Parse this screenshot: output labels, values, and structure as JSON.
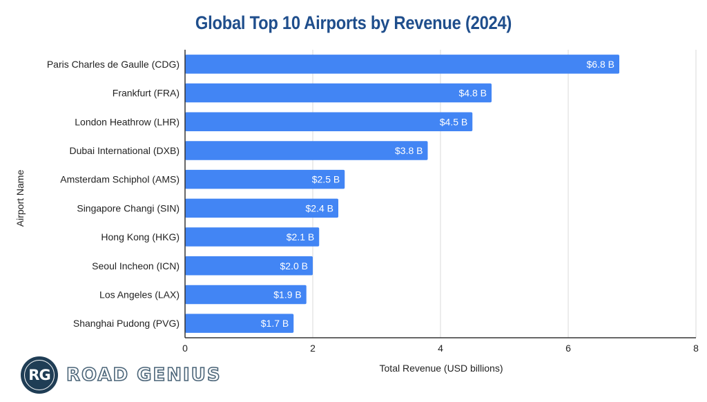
{
  "chart_data": {
    "type": "bar",
    "orientation": "horizontal",
    "title": "Global Top 10 Airports by Revenue (2024)",
    "xlabel": "Total Revenue (USD billions)",
    "ylabel": "Airport Name",
    "categories": [
      "Paris Charles de Gaulle (CDG)",
      "Frankfurt (FRA)",
      "London Heathrow (LHR)",
      "Dubai International (DXB)",
      "Amsterdam Schiphol (AMS)",
      "Singapore Changi (SIN)",
      "Hong Kong (HKG)",
      "Seoul Incheon (ICN)",
      "Los Angeles (LAX)",
      "Shanghai Pudong (PVG)"
    ],
    "values": [
      6.8,
      4.8,
      4.5,
      3.8,
      2.5,
      2.4,
      2.1,
      2.0,
      1.9,
      1.7
    ],
    "data_labels": [
      "$6.8 B",
      "$4.8 B",
      "$4.5 B",
      "$3.8 B",
      "$2.5 B",
      "$2.4 B",
      "$2.1 B",
      "$2.0 B",
      "$1.9 B",
      "$1.7 B"
    ],
    "xlim": [
      0,
      8
    ],
    "xticks": [
      0,
      2,
      4,
      6,
      8
    ],
    "xtick_labels": [
      "0",
      "2",
      "4",
      "6",
      "8"
    ],
    "grid": true,
    "legend": "none",
    "bar_color": "#4285f4",
    "title_color": "#1f4e8c"
  },
  "branding": {
    "logo_initials": "RG",
    "logo_text": "ROAD GENIUS"
  }
}
